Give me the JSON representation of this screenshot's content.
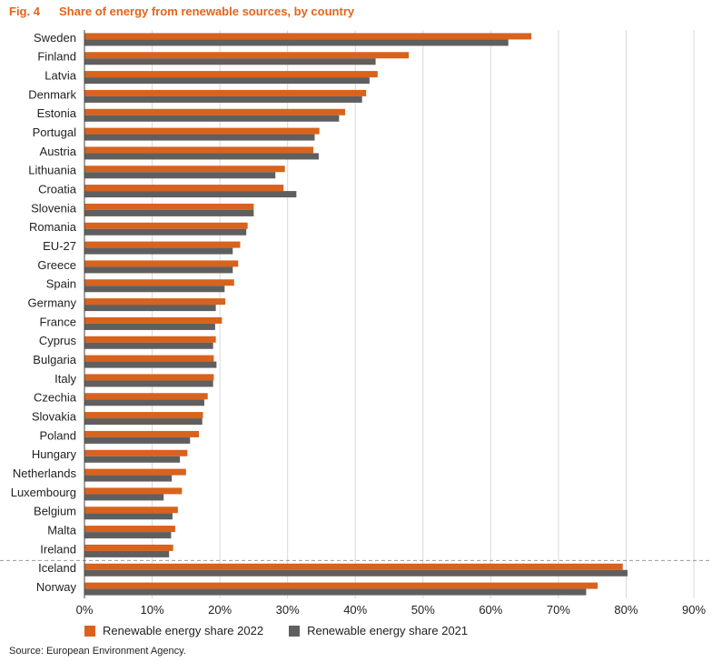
{
  "header": {
    "fig_number": "Fig. 4",
    "title": "Share of energy from renewable sources, by country"
  },
  "colors": {
    "series_2022": "#d9621c",
    "series_2021": "#5f5f5f",
    "grid": "#d9d9d9",
    "separator": "#999999"
  },
  "chart_data": {
    "type": "bar",
    "orientation": "horizontal",
    "title": "Share of energy from renewable sources, by country",
    "categories": [
      "Sweden",
      "Finland",
      "Latvia",
      "Denmark",
      "Estonia",
      "Portugal",
      "Austria",
      "Lithuania",
      "Croatia",
      "Slovenia",
      "Romania",
      "EU-27",
      "Greece",
      "Spain",
      "Germany",
      "France",
      "Cyprus",
      "Bulgaria",
      "Italy",
      "Czechia",
      "Slovakia",
      "Poland",
      "Hungary",
      "Netherlands",
      "Luxembourg",
      "Belgium",
      "Malta",
      "Ireland",
      "Iceland",
      "Norway"
    ],
    "series": [
      {
        "name": "Renewable energy share 2022",
        "values": [
          66.0,
          47.9,
          43.3,
          41.6,
          38.5,
          34.7,
          33.8,
          29.6,
          29.4,
          25.0,
          24.1,
          23.0,
          22.7,
          22.1,
          20.8,
          20.3,
          19.4,
          19.1,
          19.1,
          18.2,
          17.5,
          16.9,
          15.2,
          15.0,
          14.4,
          13.8,
          13.4,
          13.1,
          79.5,
          75.8
        ]
      },
      {
        "name": "Renewable energy share 2021",
        "values": [
          62.6,
          43.0,
          42.1,
          41.0,
          37.6,
          34.0,
          34.6,
          28.2,
          31.3,
          25.0,
          23.9,
          21.9,
          21.9,
          20.7,
          19.4,
          19.3,
          19.0,
          19.5,
          19.0,
          17.7,
          17.4,
          15.6,
          14.1,
          12.9,
          11.7,
          13.0,
          12.8,
          12.5,
          80.2,
          74.1
        ]
      }
    ],
    "xlim": [
      0,
      90
    ],
    "xticks": [
      0,
      10,
      20,
      30,
      40,
      50,
      60,
      70,
      80,
      90
    ],
    "xtick_labels": [
      "0%",
      "10%",
      "20%",
      "30%",
      "40%",
      "50%",
      "60%",
      "70%",
      "80%",
      "90%"
    ],
    "grid": true,
    "separator_after_category": "Ireland",
    "legend_placement": "bottom"
  },
  "legend": {
    "items": [
      "Renewable energy share 2022",
      "Renewable energy share 2021"
    ]
  },
  "source": "Source: European Environment Agency."
}
